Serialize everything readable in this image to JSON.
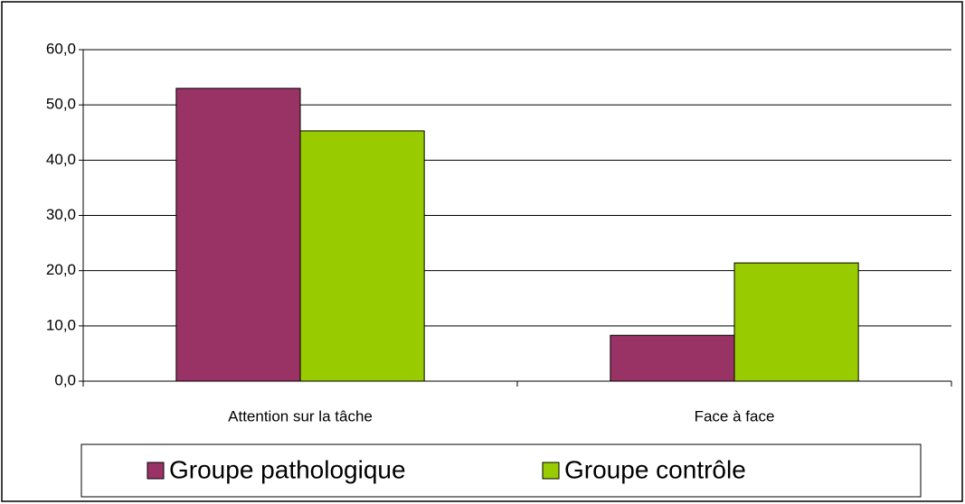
{
  "chart_data": {
    "type": "bar",
    "categories": [
      "Attention sur la tâche",
      "Face à face"
    ],
    "series": [
      {
        "name": "Groupe pathologique",
        "color": "#993366",
        "values": [
          53.0,
          8.3
        ]
      },
      {
        "name": "Groupe contrôle",
        "color": "#99cc00",
        "values": [
          45.3,
          21.4
        ]
      }
    ],
    "ylim": [
      0,
      60
    ],
    "yticks": [
      {
        "value": 0,
        "label": "0,0"
      },
      {
        "value": 10,
        "label": "10,0"
      },
      {
        "value": 20,
        "label": "20,0"
      },
      {
        "value": 30,
        "label": "30,0"
      },
      {
        "value": 40,
        "label": "40,0"
      },
      {
        "value": 50,
        "label": "50,0"
      },
      {
        "value": 60,
        "label": "60,0"
      }
    ],
    "grid": true,
    "legend": "bottom"
  }
}
